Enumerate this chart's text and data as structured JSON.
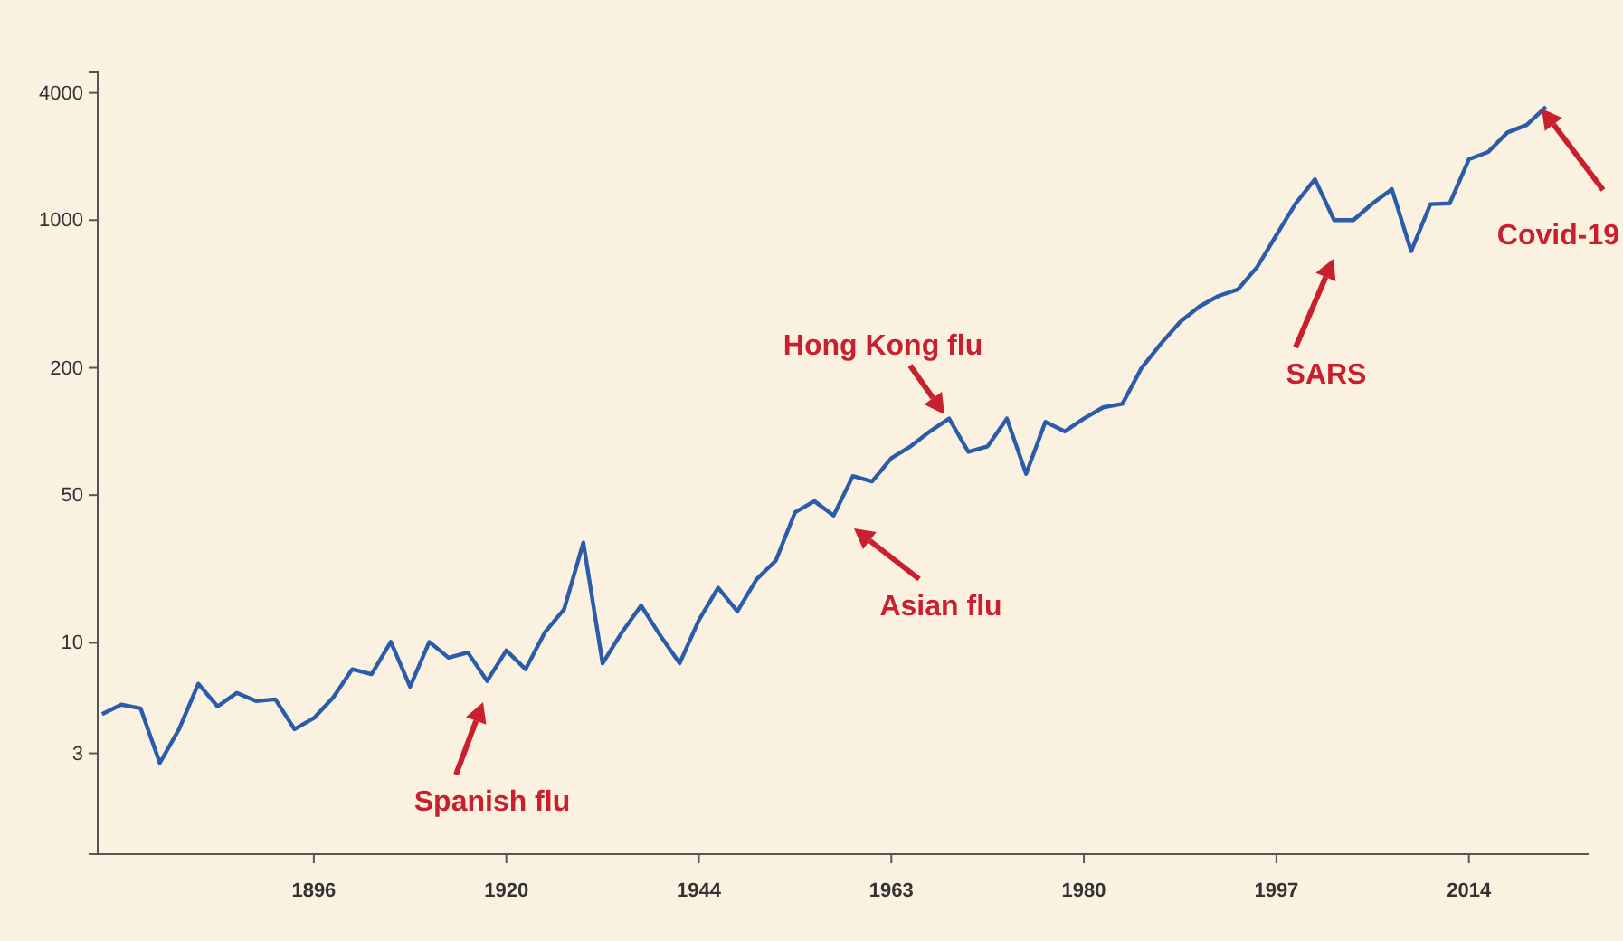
{
  "chart_data": {
    "type": "line",
    "log": "y",
    "ylim": [
      1,
      5000
    ],
    "yticks": [
      3,
      10,
      50,
      200,
      1000,
      4000
    ],
    "categories": [
      null,
      null,
      null,
      null,
      null,
      null,
      null,
      null,
      null,
      null,
      null,
      "1896",
      null,
      null,
      null,
      null,
      null,
      null,
      null,
      null,
      null,
      "1920",
      null,
      null,
      null,
      null,
      null,
      null,
      null,
      null,
      null,
      "1944",
      null,
      null,
      null,
      null,
      null,
      null,
      null,
      null,
      null,
      "1963",
      null,
      null,
      null,
      null,
      null,
      null,
      null,
      null,
      null,
      "1980",
      null,
      null,
      null,
      null,
      null,
      null,
      null,
      null,
      null,
      "1997",
      null,
      null,
      null,
      null,
      null,
      null,
      null,
      null,
      null,
      "2014",
      null,
      null,
      null,
      null
    ],
    "series": [
      {
        "color": "#2a5caa",
        "values": [
          4.6,
          5.1,
          4.9,
          2.7,
          3.9,
          6.4,
          5.0,
          5.8,
          5.3,
          5.4,
          3.9,
          4.4,
          5.5,
          7.5,
          7.1,
          10.1,
          6.2,
          10.1,
          8.5,
          9.0,
          6.6,
          9.2,
          7.5,
          11.2,
          14.4,
          29.8,
          8.0,
          11.2,
          15,
          10.8,
          8.0,
          12.8,
          18.2,
          14.1,
          20,
          24.5,
          41.5,
          46.8,
          40,
          61.5,
          58,
          74.8,
          85,
          100,
          115,
          80,
          85,
          115,
          63,
          111,
          100,
          115,
          130,
          135,
          200,
          260,
          330,
          390,
          438,
          470,
          600,
          850,
          1200,
          1560,
          1000,
          1000,
          1200,
          1400,
          713,
          1190,
          1200,
          1940,
          2100,
          2600,
          2820,
          3430
        ]
      }
    ],
    "annotations": [
      "Spanish flu",
      "Asian flu",
      "Hong Kong flu",
      "SARS",
      "Covid-19"
    ]
  }
}
